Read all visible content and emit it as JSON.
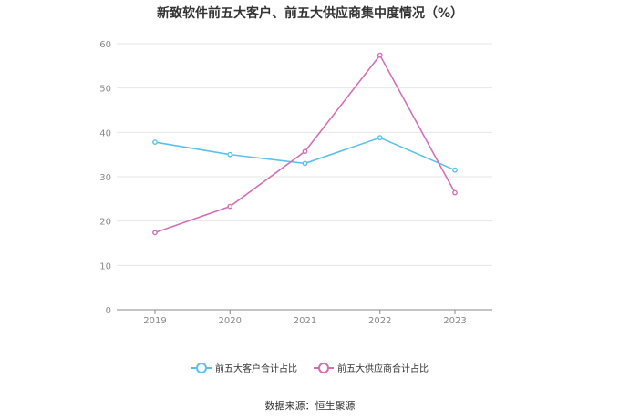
{
  "chart_data": {
    "type": "line",
    "title": "新致软件前五大客户、前五大供应商集中度情况（%）",
    "categories": [
      "2019",
      "2020",
      "2021",
      "2022",
      "2023"
    ],
    "series": [
      {
        "name": "前五大客户合计占比",
        "color": "#5bc0eb",
        "values": [
          37.8,
          35.0,
          33.0,
          38.8,
          31.5
        ]
      },
      {
        "name": "前五大供应商合计占比",
        "color": "#d36fb8",
        "values": [
          17.4,
          23.3,
          35.7,
          57.4,
          26.4
        ]
      }
    ],
    "ylim": [
      0,
      60
    ],
    "yticks": [
      0,
      10,
      20,
      30,
      40,
      50,
      60
    ],
    "grid": true,
    "legend_position": "bottom"
  },
  "footer": {
    "source": "数据来源：恒生聚源"
  }
}
